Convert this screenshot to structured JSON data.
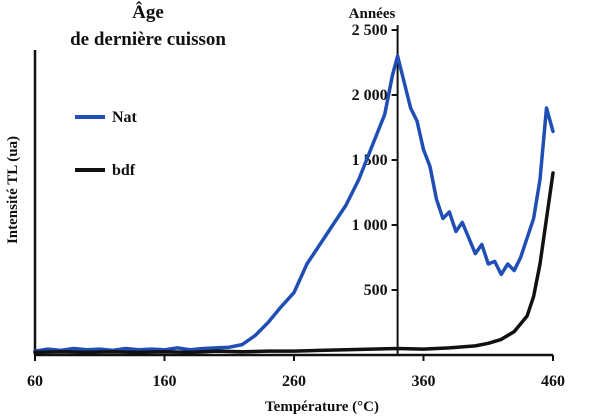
{
  "chart_data": {
    "type": "line",
    "title_line1": "Âge",
    "title_line2": "de dernière cuisson",
    "xlabel": "Température (°C)",
    "ylabel": "Intensité TL (ua)",
    "y2label": "Années",
    "xlim": [
      60,
      460
    ],
    "x_ticks": [
      "60",
      "160",
      "260",
      "360",
      "460"
    ],
    "y2lim": [
      0,
      2500
    ],
    "y2_ticks": [
      "500",
      "1 000",
      "1 500",
      "2 000",
      "2 500"
    ],
    "legend_position": "left",
    "age_marker_x": 340,
    "series": [
      {
        "name": "Nat",
        "color": "#1f4fb4",
        "x": [
          60,
          70,
          80,
          90,
          100,
          110,
          120,
          130,
          140,
          150,
          160,
          170,
          180,
          190,
          200,
          210,
          220,
          230,
          240,
          250,
          260,
          270,
          280,
          290,
          300,
          310,
          320,
          330,
          336,
          340,
          345,
          350,
          355,
          360,
          365,
          370,
          375,
          380,
          385,
          390,
          395,
          400,
          405,
          410,
          415,
          420,
          425,
          430,
          435,
          440,
          445,
          450,
          455,
          460
        ],
        "y": [
          30,
          45,
          35,
          50,
          40,
          45,
          35,
          50,
          40,
          45,
          40,
          55,
          40,
          50,
          55,
          60,
          80,
          150,
          250,
          370,
          480,
          700,
          850,
          1000,
          1150,
          1350,
          1600,
          1850,
          2150,
          2300,
          2100,
          1900,
          1800,
          1580,
          1450,
          1200,
          1050,
          1100,
          950,
          1020,
          900,
          780,
          850,
          700,
          720,
          620,
          700,
          650,
          750,
          900,
          1050,
          1350,
          1900,
          1720
        ]
      },
      {
        "name": "bdf",
        "color": "#111111",
        "x": [
          60,
          80,
          100,
          120,
          140,
          160,
          180,
          200,
          220,
          240,
          260,
          280,
          300,
          320,
          340,
          360,
          380,
          400,
          410,
          420,
          430,
          440,
          445,
          450,
          455,
          460
        ],
        "y": [
          20,
          25,
          20,
          25,
          20,
          25,
          20,
          30,
          25,
          30,
          30,
          35,
          40,
          45,
          50,
          45,
          55,
          70,
          90,
          120,
          180,
          300,
          450,
          700,
          1050,
          1400
        ]
      }
    ]
  }
}
